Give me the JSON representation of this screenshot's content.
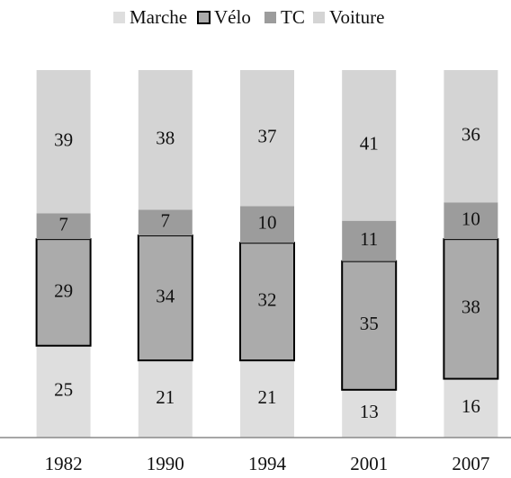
{
  "chart_data": {
    "type": "stacked_bar",
    "categories": [
      "1982",
      "1990",
      "1994",
      "2001",
      "2007"
    ],
    "series": [
      {
        "name": "Marche",
        "color": "#dedede",
        "values": [
          25,
          21,
          21,
          13,
          16
        ]
      },
      {
        "name": "Vélo",
        "color": "#ababab",
        "edgecolor": "#000000",
        "values": [
          29,
          34,
          32,
          35,
          38
        ]
      },
      {
        "name": "TC",
        "color": "#9c9c9c",
        "values": [
          7,
          7,
          10,
          11,
          10
        ]
      },
      {
        "name": "Voiture",
        "color": "#d4d4d4",
        "values": [
          39,
          38,
          37,
          41,
          36
        ]
      }
    ],
    "ylim": [
      0,
      100
    ]
  }
}
